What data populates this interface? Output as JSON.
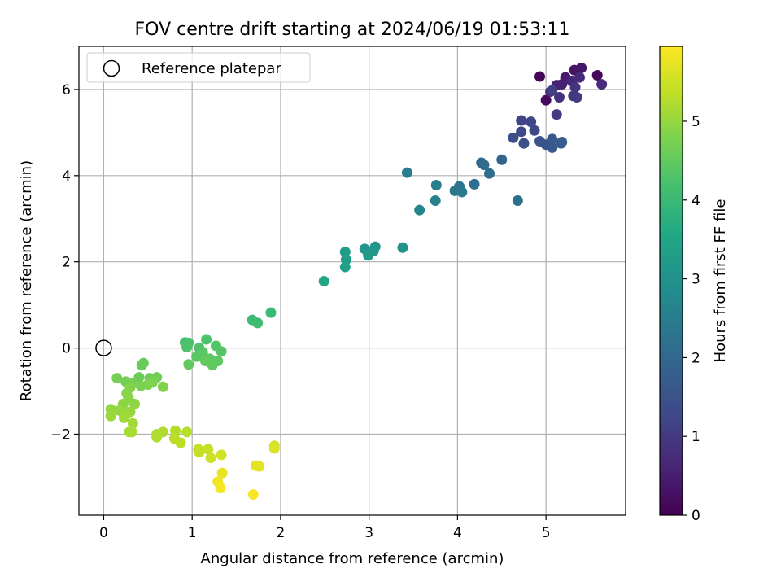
{
  "chart_data": {
    "type": "scatter",
    "title": "FOV centre drift starting at 2024/06/19 01:53:11",
    "xlabel": "Angular distance from reference (arcmin)",
    "ylabel": "Rotation from reference (arcmin)",
    "xlim": [
      -0.28,
      5.9
    ],
    "ylim": [
      -3.88,
      7.0
    ],
    "xticks": [
      0,
      1,
      2,
      3,
      4,
      5
    ],
    "yticks": [
      -2,
      0,
      2,
      4,
      6
    ],
    "xtick_labels": [
      "0",
      "1",
      "2",
      "3",
      "4",
      "5"
    ],
    "ytick_labels": [
      "−2",
      "0",
      "2",
      "4",
      "6"
    ],
    "grid": true,
    "legend": {
      "placement": "top-left",
      "entries": [
        {
          "label": "Reference platepar",
          "marker": "open-circle"
        }
      ]
    },
    "reference_point": {
      "x": 0,
      "y": 0
    },
    "colorbar": {
      "label": "Hours from first FF file",
      "colormap": "viridis",
      "range": [
        0,
        5.95
      ],
      "ticks": [
        0,
        1,
        2,
        3,
        4,
        5
      ],
      "tick_labels": [
        "0",
        "1",
        "2",
        "3",
        "4",
        "5"
      ]
    },
    "points": [
      {
        "x": 4.93,
        "y": 6.3,
        "c": 0.05
      },
      {
        "x": 5.58,
        "y": 6.33,
        "c": 0.1
      },
      {
        "x": 5.0,
        "y": 5.75,
        "c": 0.15
      },
      {
        "x": 5.32,
        "y": 6.45,
        "c": 0.3
      },
      {
        "x": 5.4,
        "y": 6.5,
        "c": 0.35
      },
      {
        "x": 5.22,
        "y": 6.28,
        "c": 0.45
      },
      {
        "x": 5.18,
        "y": 6.12,
        "c": 0.55
      },
      {
        "x": 5.12,
        "y": 6.1,
        "c": 0.6
      },
      {
        "x": 5.29,
        "y": 6.2,
        "c": 0.65
      },
      {
        "x": 5.38,
        "y": 6.28,
        "c": 0.7
      },
      {
        "x": 5.63,
        "y": 6.12,
        "c": 0.75
      },
      {
        "x": 5.05,
        "y": 5.95,
        "c": 0.8
      },
      {
        "x": 5.15,
        "y": 5.82,
        "c": 0.85
      },
      {
        "x": 5.33,
        "y": 6.05,
        "c": 0.9
      },
      {
        "x": 5.31,
        "y": 5.85,
        "c": 0.95
      },
      {
        "x": 5.35,
        "y": 5.82,
        "c": 1.0
      },
      {
        "x": 5.12,
        "y": 5.42,
        "c": 1.05
      },
      {
        "x": 5.07,
        "y": 5.98,
        "c": 1.1
      },
      {
        "x": 4.72,
        "y": 5.28,
        "c": 1.2
      },
      {
        "x": 4.83,
        "y": 5.25,
        "c": 1.25
      },
      {
        "x": 4.87,
        "y": 5.05,
        "c": 1.3
      },
      {
        "x": 4.72,
        "y": 5.02,
        "c": 1.35
      },
      {
        "x": 4.63,
        "y": 4.88,
        "c": 1.4
      },
      {
        "x": 4.75,
        "y": 4.75,
        "c": 1.45
      },
      {
        "x": 4.93,
        "y": 4.8,
        "c": 1.5
      },
      {
        "x": 5.0,
        "y": 4.72,
        "c": 1.55
      },
      {
        "x": 5.07,
        "y": 4.85,
        "c": 1.6
      },
      {
        "x": 5.07,
        "y": 4.65,
        "c": 1.65
      },
      {
        "x": 5.18,
        "y": 4.78,
        "c": 1.7
      },
      {
        "x": 5.17,
        "y": 4.75,
        "c": 1.75
      },
      {
        "x": 4.5,
        "y": 4.37,
        "c": 1.9
      },
      {
        "x": 4.27,
        "y": 4.3,
        "c": 2.0
      },
      {
        "x": 4.3,
        "y": 4.25,
        "c": 2.05
      },
      {
        "x": 4.36,
        "y": 4.05,
        "c": 2.1
      },
      {
        "x": 4.19,
        "y": 3.8,
        "c": 2.15
      },
      {
        "x": 4.68,
        "y": 3.42,
        "c": 2.2
      },
      {
        "x": 4.02,
        "y": 3.75,
        "c": 2.3
      },
      {
        "x": 3.97,
        "y": 3.65,
        "c": 2.35
      },
      {
        "x": 4.05,
        "y": 3.62,
        "c": 2.4
      },
      {
        "x": 3.43,
        "y": 4.07,
        "c": 2.5
      },
      {
        "x": 3.76,
        "y": 3.78,
        "c": 2.55
      },
      {
        "x": 3.75,
        "y": 3.42,
        "c": 2.6
      },
      {
        "x": 3.57,
        "y": 3.2,
        "c": 2.7
      },
      {
        "x": 3.38,
        "y": 2.33,
        "c": 3.0
      },
      {
        "x": 2.95,
        "y": 2.3,
        "c": 3.05
      },
      {
        "x": 3.07,
        "y": 2.35,
        "c": 3.1
      },
      {
        "x": 3.05,
        "y": 2.25,
        "c": 3.15
      },
      {
        "x": 2.99,
        "y": 2.15,
        "c": 3.2
      },
      {
        "x": 2.73,
        "y": 2.23,
        "c": 3.25
      },
      {
        "x": 2.74,
        "y": 2.05,
        "c": 3.3
      },
      {
        "x": 2.73,
        "y": 1.88,
        "c": 3.35
      },
      {
        "x": 2.49,
        "y": 1.55,
        "c": 3.55
      },
      {
        "x": 1.89,
        "y": 0.82,
        "c": 4.0
      },
      {
        "x": 1.68,
        "y": 0.65,
        "c": 4.05
      },
      {
        "x": 1.74,
        "y": 0.58,
        "c": 4.1
      },
      {
        "x": 0.92,
        "y": 0.13,
        "c": 4.2
      },
      {
        "x": 0.96,
        "y": 0.12,
        "c": 4.22
      },
      {
        "x": 1.16,
        "y": 0.2,
        "c": 4.25
      },
      {
        "x": 0.94,
        "y": 0.02,
        "c": 4.28
      },
      {
        "x": 1.08,
        "y": 0.0,
        "c": 4.3
      },
      {
        "x": 1.27,
        "y": 0.05,
        "c": 4.32
      },
      {
        "x": 1.33,
        "y": -0.08,
        "c": 4.35
      },
      {
        "x": 1.12,
        "y": -0.1,
        "c": 4.38
      },
      {
        "x": 1.05,
        "y": -0.2,
        "c": 4.4
      },
      {
        "x": 1.2,
        "y": -0.25,
        "c": 4.42
      },
      {
        "x": 1.29,
        "y": -0.3,
        "c": 4.45
      },
      {
        "x": 0.96,
        "y": -0.38,
        "c": 4.48
      },
      {
        "x": 1.23,
        "y": -0.4,
        "c": 4.5
      },
      {
        "x": 1.15,
        "y": -0.3,
        "c": 4.52
      },
      {
        "x": 0.45,
        "y": -0.35,
        "c": 4.55
      },
      {
        "x": 0.43,
        "y": -0.4,
        "c": 4.57
      },
      {
        "x": 0.4,
        "y": -0.68,
        "c": 4.6
      },
      {
        "x": 0.52,
        "y": -0.7,
        "c": 4.62
      },
      {
        "x": 0.6,
        "y": -0.68,
        "c": 4.65
      },
      {
        "x": 0.15,
        "y": -0.7,
        "c": 4.68
      },
      {
        "x": 0.25,
        "y": -0.78,
        "c": 4.7
      },
      {
        "x": 0.33,
        "y": -0.82,
        "c": 4.72
      },
      {
        "x": 0.42,
        "y": -0.88,
        "c": 4.75
      },
      {
        "x": 0.5,
        "y": -0.85,
        "c": 4.77
      },
      {
        "x": 0.55,
        "y": -0.8,
        "c": 4.8
      },
      {
        "x": 0.67,
        "y": -0.9,
        "c": 4.82
      },
      {
        "x": 0.3,
        "y": -0.92,
        "c": 4.85
      },
      {
        "x": 0.26,
        "y": -1.05,
        "c": 4.87
      },
      {
        "x": 0.28,
        "y": -1.15,
        "c": 4.9
      },
      {
        "x": 0.22,
        "y": -1.3,
        "c": 4.92
      },
      {
        "x": 0.35,
        "y": -1.3,
        "c": 4.95
      },
      {
        "x": 0.08,
        "y": -1.42,
        "c": 4.97
      },
      {
        "x": 0.18,
        "y": -1.45,
        "c": 5.0
      },
      {
        "x": 0.3,
        "y": -1.48,
        "c": 5.02
      },
      {
        "x": 0.25,
        "y": -1.55,
        "c": 5.05
      },
      {
        "x": 0.08,
        "y": -1.58,
        "c": 5.07
      },
      {
        "x": 0.23,
        "y": -1.62,
        "c": 5.1
      },
      {
        "x": 0.33,
        "y": -1.75,
        "c": 5.12
      },
      {
        "x": 0.29,
        "y": -1.95,
        "c": 5.15
      },
      {
        "x": 0.32,
        "y": -1.95,
        "c": 5.17
      },
      {
        "x": 0.6,
        "y": -2.0,
        "c": 5.2
      },
      {
        "x": 0.67,
        "y": -1.95,
        "c": 5.22
      },
      {
        "x": 0.6,
        "y": -2.07,
        "c": 5.25
      },
      {
        "x": 0.81,
        "y": -1.92,
        "c": 5.27
      },
      {
        "x": 0.94,
        "y": -1.95,
        "c": 5.3
      },
      {
        "x": 0.8,
        "y": -2.1,
        "c": 5.32
      },
      {
        "x": 0.87,
        "y": -2.2,
        "c": 5.35
      },
      {
        "x": 1.07,
        "y": -2.35,
        "c": 5.4
      },
      {
        "x": 1.08,
        "y": -2.42,
        "c": 5.42
      },
      {
        "x": 1.18,
        "y": -2.35,
        "c": 5.45
      },
      {
        "x": 1.21,
        "y": -2.55,
        "c": 5.5
      },
      {
        "x": 1.33,
        "y": -2.48,
        "c": 5.55
      },
      {
        "x": 1.93,
        "y": -2.27,
        "c": 5.6
      },
      {
        "x": 1.93,
        "y": -2.33,
        "c": 5.62
      },
      {
        "x": 1.72,
        "y": -2.73,
        "c": 5.7
      },
      {
        "x": 1.76,
        "y": -2.75,
        "c": 5.72
      },
      {
        "x": 1.34,
        "y": -2.9,
        "c": 5.75
      },
      {
        "x": 1.29,
        "y": -3.1,
        "c": 5.8
      },
      {
        "x": 1.32,
        "y": -3.25,
        "c": 5.85
      },
      {
        "x": 1.69,
        "y": -3.4,
        "c": 5.9
      }
    ]
  }
}
